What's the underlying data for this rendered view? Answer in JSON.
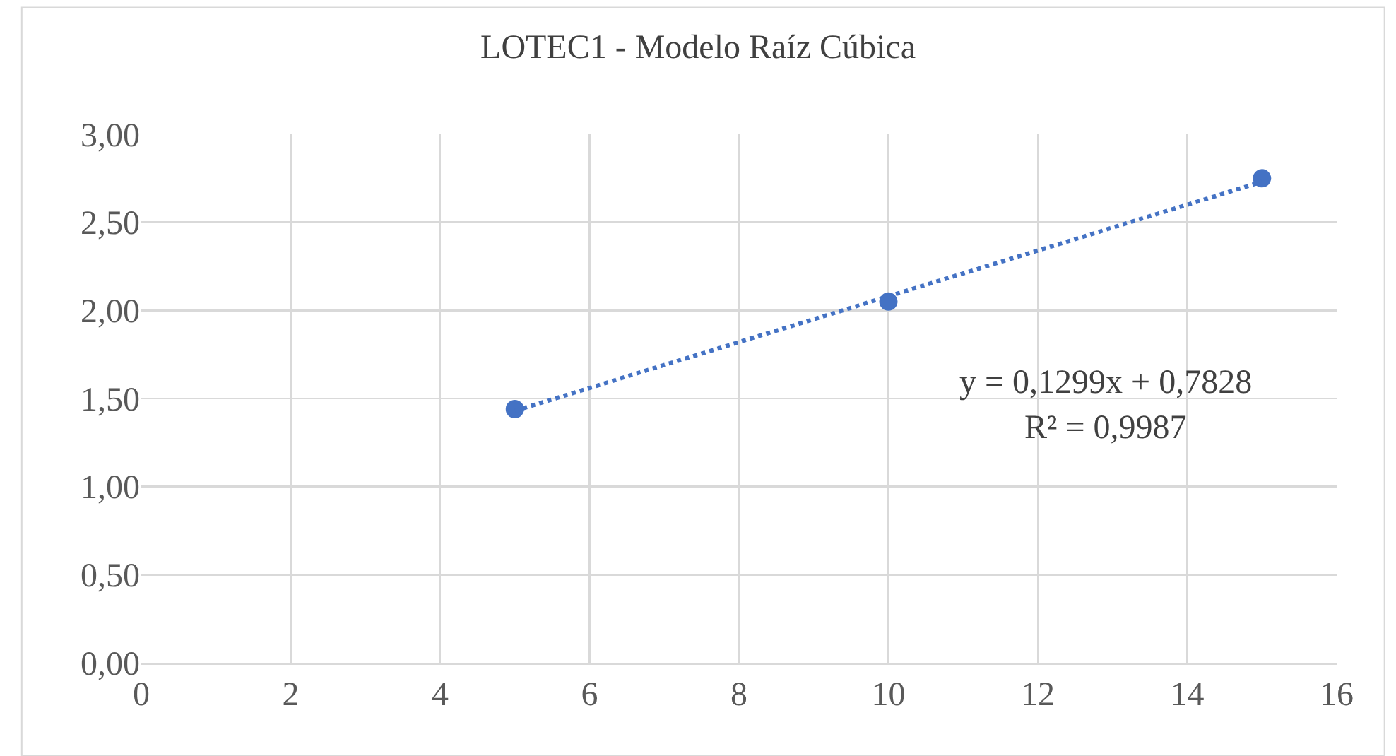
{
  "chart_data": {
    "type": "scatter",
    "title": "LOTEC1 - Modelo Raíz Cúbica",
    "xlim": [
      0,
      16
    ],
    "xticks": [
      0,
      2,
      4,
      6,
      8,
      10,
      12,
      14,
      16
    ],
    "ylim": [
      0,
      3
    ],
    "yticks": [
      {
        "value": 0,
        "label": "0,00"
      },
      {
        "value": 0.5,
        "label": "0,50"
      },
      {
        "value": 1,
        "label": "1,00"
      },
      {
        "value": 1.5,
        "label": "1,50"
      },
      {
        "value": 2,
        "label": "2,00"
      },
      {
        "value": 2.5,
        "label": "2,50"
      },
      {
        "value": 3,
        "label": "3,00"
      }
    ],
    "grid": true,
    "series": [
      {
        "color": "#4472c4",
        "marker": "circle",
        "x": [
          5,
          10,
          15
        ],
        "values": [
          1.44,
          2.05,
          2.75
        ]
      },
      {
        "type": "line",
        "color": "#4472c4",
        "marker": "none",
        "line_style": "dotted",
        "x": [
          5,
          15
        ],
        "values": [
          1.43,
          2.73
        ]
      }
    ],
    "annotations": [
      "y = 0,1299x + 0,7828",
      "R² = 0,9987"
    ]
  }
}
